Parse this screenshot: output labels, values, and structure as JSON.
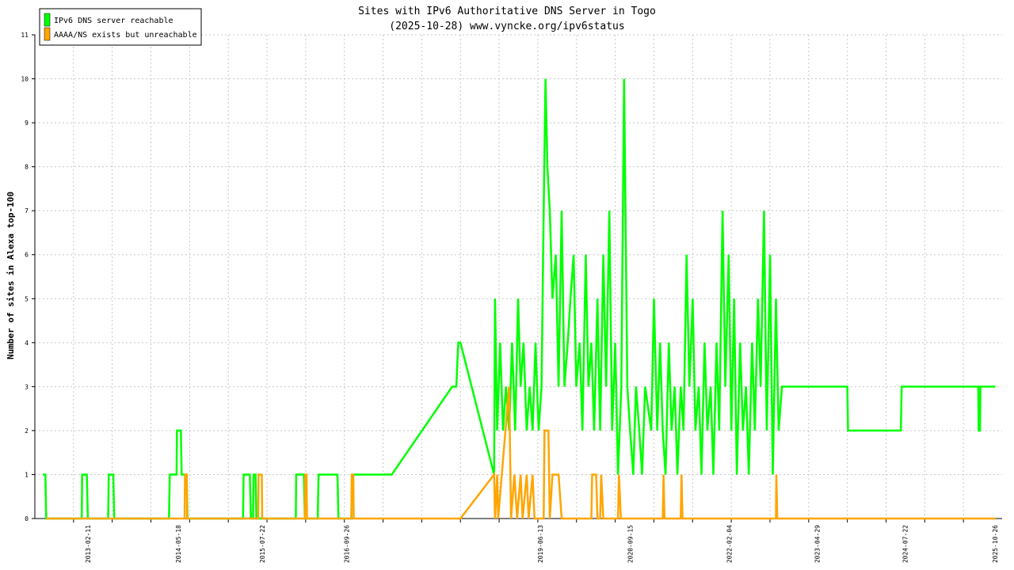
{
  "chart_data": {
    "type": "line",
    "title": "Sites with IPv6 Authoritative DNS Server in Togo",
    "subtitle": "(2025-10-28) www.vyncke.org/ipv6status",
    "ylabel": "Number of sites in Alexa top-100",
    "xlabel": "",
    "ylim": [
      0,
      11
    ],
    "xlim": [
      "2012-05-15",
      "2025-12-01"
    ],
    "grid": true,
    "legend_position": "top-left",
    "y_ticks": [
      0,
      1,
      2,
      3,
      4,
      5,
      6,
      7,
      8,
      9,
      10,
      11
    ],
    "x_ticks": [
      "2013-02-11",
      "2014-05-18",
      "2015-07-22",
      "2016-09-26",
      "2019-06-13",
      "2020-09-15",
      "2022-02-04",
      "2023-04-29",
      "2024-07-22",
      "2025-10-26"
    ],
    "series": [
      {
        "name": "IPv6 DNS server reachable",
        "color": "#00ff00",
        "points": [
          [
            "2012-06-25",
            1
          ],
          [
            "2012-07-08",
            1
          ],
          [
            "2012-07-12",
            0
          ],
          [
            "2013-01-10",
            0
          ],
          [
            "2013-01-12",
            1
          ],
          [
            "2013-02-05",
            1
          ],
          [
            "2013-02-10",
            0
          ],
          [
            "2013-05-25",
            0
          ],
          [
            "2013-05-28",
            1
          ],
          [
            "2013-06-20",
            1
          ],
          [
            "2013-06-25",
            0
          ],
          [
            "2014-04-01",
            0
          ],
          [
            "2014-04-05",
            1
          ],
          [
            "2014-05-10",
            1
          ],
          [
            "2014-05-12",
            2
          ],
          [
            "2014-06-01",
            2
          ],
          [
            "2014-06-05",
            1
          ],
          [
            "2014-07-01",
            1
          ],
          [
            "2014-07-05",
            0
          ],
          [
            "2015-04-15",
            0
          ],
          [
            "2015-04-18",
            1
          ],
          [
            "2015-05-20",
            1
          ],
          [
            "2015-05-25",
            0
          ],
          [
            "2015-06-05",
            0
          ],
          [
            "2015-06-08",
            1
          ],
          [
            "2015-06-18",
            1
          ],
          [
            "2015-06-22",
            0
          ],
          [
            "2016-01-10",
            0
          ],
          [
            "2016-01-12",
            1
          ],
          [
            "2016-02-20",
            1
          ],
          [
            "2016-02-25",
            0
          ],
          [
            "2016-05-01",
            0
          ],
          [
            "2016-05-05",
            1
          ],
          [
            "2016-08-10",
            1
          ],
          [
            "2016-08-15",
            0
          ],
          [
            "2016-10-20",
            0
          ],
          [
            "2016-10-25",
            1
          ],
          [
            "2017-05-15",
            1
          ],
          [
            "2018-03-20",
            3
          ],
          [
            "2018-04-10",
            3
          ],
          [
            "2018-04-20",
            4
          ],
          [
            "2018-05-01",
            4
          ],
          [
            "2018-10-20",
            1
          ],
          [
            "2018-10-25",
            5
          ],
          [
            "2018-11-05",
            2
          ],
          [
            "2018-11-20",
            4
          ],
          [
            "2018-12-05",
            2
          ],
          [
            "2018-12-20",
            3
          ],
          [
            "2019-01-05",
            2
          ],
          [
            "2019-01-20",
            4
          ],
          [
            "2019-02-05",
            2
          ],
          [
            "2019-02-20",
            5
          ],
          [
            "2019-03-05",
            3
          ],
          [
            "2019-03-20",
            4
          ],
          [
            "2019-04-05",
            2
          ],
          [
            "2019-04-20",
            3
          ],
          [
            "2019-05-05",
            2
          ],
          [
            "2019-05-20",
            4
          ],
          [
            "2019-06-05",
            2
          ],
          [
            "2019-06-20",
            3
          ],
          [
            "2019-07-01",
            7
          ],
          [
            "2019-07-10",
            10
          ],
          [
            "2019-07-20",
            8
          ],
          [
            "2019-08-01",
            7
          ],
          [
            "2019-08-15",
            5
          ],
          [
            "2019-09-01",
            6
          ],
          [
            "2019-09-15",
            3
          ],
          [
            "2019-10-01",
            7
          ],
          [
            "2019-10-15",
            3
          ],
          [
            "2019-11-01",
            4
          ],
          [
            "2019-11-15",
            5
          ],
          [
            "2019-12-01",
            6
          ],
          [
            "2019-12-15",
            3
          ],
          [
            "2020-01-01",
            4
          ],
          [
            "2020-01-15",
            2
          ],
          [
            "2020-02-01",
            6
          ],
          [
            "2020-02-15",
            3
          ],
          [
            "2020-03-01",
            4
          ],
          [
            "2020-03-15",
            2
          ],
          [
            "2020-04-01",
            5
          ],
          [
            "2020-04-15",
            2
          ],
          [
            "2020-05-01",
            6
          ],
          [
            "2020-05-15",
            3
          ],
          [
            "2020-06-01",
            7
          ],
          [
            "2020-06-15",
            2
          ],
          [
            "2020-07-01",
            4
          ],
          [
            "2020-07-15",
            1
          ],
          [
            "2020-08-01",
            3
          ],
          [
            "2020-08-15",
            10
          ],
          [
            "2020-09-01",
            3
          ],
          [
            "2020-09-15",
            2
          ],
          [
            "2020-10-01",
            1
          ],
          [
            "2020-10-15",
            3
          ],
          [
            "2020-11-01",
            2
          ],
          [
            "2020-11-15",
            1
          ],
          [
            "2020-12-01",
            3
          ],
          [
            "2021-01-01",
            2
          ],
          [
            "2021-01-15",
            5
          ],
          [
            "2021-02-01",
            2
          ],
          [
            "2021-02-15",
            4
          ],
          [
            "2021-03-01",
            2
          ],
          [
            "2021-03-15",
            1
          ],
          [
            "2021-04-01",
            4
          ],
          [
            "2021-04-15",
            2
          ],
          [
            "2021-05-01",
            3
          ],
          [
            "2021-05-15",
            1
          ],
          [
            "2021-06-01",
            3
          ],
          [
            "2021-06-15",
            2
          ],
          [
            "2021-07-01",
            6
          ],
          [
            "2021-07-15",
            3
          ],
          [
            "2021-08-01",
            5
          ],
          [
            "2021-08-15",
            2
          ],
          [
            "2021-09-01",
            3
          ],
          [
            "2021-09-15",
            1
          ],
          [
            "2021-10-01",
            4
          ],
          [
            "2021-10-15",
            2
          ],
          [
            "2021-11-01",
            3
          ],
          [
            "2021-11-15",
            1
          ],
          [
            "2021-12-01",
            4
          ],
          [
            "2021-12-15",
            2
          ],
          [
            "2022-01-01",
            7
          ],
          [
            "2022-01-15",
            3
          ],
          [
            "2022-02-01",
            6
          ],
          [
            "2022-02-15",
            2
          ],
          [
            "2022-03-01",
            5
          ],
          [
            "2022-03-15",
            1
          ],
          [
            "2022-04-01",
            4
          ],
          [
            "2022-04-15",
            2
          ],
          [
            "2022-05-01",
            3
          ],
          [
            "2022-05-15",
            1
          ],
          [
            "2022-06-01",
            4
          ],
          [
            "2022-06-15",
            2
          ],
          [
            "2022-07-01",
            5
          ],
          [
            "2022-07-15",
            3
          ],
          [
            "2022-08-01",
            7
          ],
          [
            "2022-08-15",
            2
          ],
          [
            "2022-09-01",
            6
          ],
          [
            "2022-09-15",
            1
          ],
          [
            "2022-10-01",
            5
          ],
          [
            "2022-10-15",
            2
          ],
          [
            "2022-11-01",
            3
          ],
          [
            "2023-10-01",
            3
          ],
          [
            "2023-10-05",
            2
          ],
          [
            "2024-07-01",
            2
          ],
          [
            "2024-07-05",
            3
          ],
          [
            "2025-08-01",
            3
          ],
          [
            "2025-08-03",
            2
          ],
          [
            "2025-08-10",
            2
          ],
          [
            "2025-08-12",
            3
          ],
          [
            "2025-10-28",
            3
          ]
        ]
      },
      {
        "name": "AAAA/NS exists but unreachable",
        "color": "#ffa500",
        "points": [
          [
            "2012-07-12",
            0
          ],
          [
            "2014-06-20",
            0
          ],
          [
            "2014-06-22",
            1
          ],
          [
            "2014-07-01",
            1
          ],
          [
            "2014-07-03",
            0
          ],
          [
            "2015-07-01",
            0
          ],
          [
            "2015-07-03",
            1
          ],
          [
            "2015-07-20",
            1
          ],
          [
            "2015-07-22",
            0
          ],
          [
            "2016-02-25",
            0
          ],
          [
            "2016-02-27",
            1
          ],
          [
            "2016-03-05",
            1
          ],
          [
            "2016-03-07",
            0
          ],
          [
            "2016-10-20",
            0
          ],
          [
            "2016-10-22",
            1
          ],
          [
            "2016-10-30",
            1
          ],
          [
            "2016-11-01",
            0
          ],
          [
            "2018-05-01",
            0
          ],
          [
            "2018-10-20",
            1
          ],
          [
            "2018-10-25",
            0
          ],
          [
            "2018-11-05",
            1
          ],
          [
            "2018-11-10",
            0
          ],
          [
            "2019-01-05",
            3
          ],
          [
            "2019-01-15",
            0
          ],
          [
            "2019-02-01",
            1
          ],
          [
            "2019-02-15",
            0
          ],
          [
            "2019-03-05",
            1
          ],
          [
            "2019-03-15",
            0
          ],
          [
            "2019-04-05",
            1
          ],
          [
            "2019-04-15",
            0
          ],
          [
            "2019-05-05",
            1
          ],
          [
            "2019-05-15",
            0
          ],
          [
            "2019-07-01",
            0
          ],
          [
            "2019-07-05",
            2
          ],
          [
            "2019-07-25",
            2
          ],
          [
            "2019-08-01",
            0
          ],
          [
            "2019-08-15",
            1
          ],
          [
            "2019-09-15",
            1
          ],
          [
            "2019-10-01",
            0
          ],
          [
            "2020-03-01",
            0
          ],
          [
            "2020-03-05",
            1
          ],
          [
            "2020-03-25",
            1
          ],
          [
            "2020-04-01",
            0
          ],
          [
            "2020-04-15",
            0
          ],
          [
            "2020-04-20",
            1
          ],
          [
            "2020-05-01",
            0
          ],
          [
            "2020-07-15",
            0
          ],
          [
            "2020-07-20",
            1
          ],
          [
            "2020-07-30",
            0
          ],
          [
            "2021-03-01",
            0
          ],
          [
            "2021-03-05",
            1
          ],
          [
            "2021-03-10",
            0
          ],
          [
            "2021-06-01",
            0
          ],
          [
            "2021-06-05",
            1
          ],
          [
            "2021-06-10",
            0
          ],
          [
            "2022-10-01",
            0
          ],
          [
            "2022-10-03",
            1
          ],
          [
            "2022-10-08",
            0
          ],
          [
            "2025-10-28",
            0
          ]
        ]
      }
    ]
  }
}
